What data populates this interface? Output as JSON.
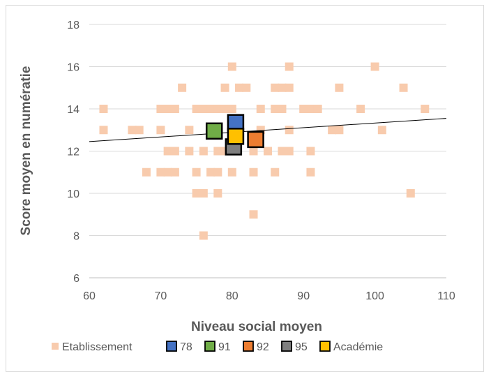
{
  "chart_data": {
    "type": "scatter",
    "xlabel": "Niveau social moyen",
    "ylabel": "Score moyen en numératie",
    "xlim": [
      60,
      110
    ],
    "ylim": [
      6,
      18
    ],
    "xticks": [
      60,
      70,
      80,
      90,
      100,
      110
    ],
    "yticks": [
      6,
      8,
      10,
      12,
      14,
      16,
      18
    ],
    "grid": "horizontal",
    "legend_position": "bottom",
    "trendline": {
      "from": [
        60,
        12.45
      ],
      "to": [
        110,
        13.55
      ]
    },
    "series": [
      {
        "name": "Etablissement",
        "color": "#f8cbad",
        "points": [
          [
            62,
            14
          ],
          [
            62,
            13
          ],
          [
            66,
            13
          ],
          [
            67,
            13
          ],
          [
            68,
            11
          ],
          [
            70,
            14
          ],
          [
            70,
            13
          ],
          [
            70,
            11
          ],
          [
            71,
            14
          ],
          [
            71,
            12
          ],
          [
            71,
            11
          ],
          [
            72,
            14
          ],
          [
            72,
            12
          ],
          [
            72,
            11
          ],
          [
            73,
            15
          ],
          [
            74,
            13
          ],
          [
            74,
            12
          ],
          [
            75,
            14
          ],
          [
            75,
            11
          ],
          [
            75,
            10
          ],
          [
            76,
            14
          ],
          [
            76,
            12
          ],
          [
            76,
            10
          ],
          [
            76,
            8
          ],
          [
            77,
            14
          ],
          [
            77,
            11
          ],
          [
            78,
            14
          ],
          [
            78,
            12
          ],
          [
            78,
            11
          ],
          [
            78,
            10
          ],
          [
            79,
            15
          ],
          [
            79,
            14
          ],
          [
            79,
            12
          ],
          [
            80,
            16
          ],
          [
            80,
            14
          ],
          [
            80,
            11
          ],
          [
            81,
            15
          ],
          [
            82,
            15
          ],
          [
            83,
            12
          ],
          [
            83,
            11
          ],
          [
            83,
            9
          ],
          [
            84,
            14
          ],
          [
            84,
            13
          ],
          [
            85,
            12
          ],
          [
            86,
            15
          ],
          [
            86,
            14
          ],
          [
            86,
            11
          ],
          [
            87,
            15
          ],
          [
            87,
            14
          ],
          [
            87,
            12
          ],
          [
            88,
            16
          ],
          [
            88,
            15
          ],
          [
            88,
            13
          ],
          [
            88,
            12
          ],
          [
            90,
            14
          ],
          [
            91,
            14
          ],
          [
            91,
            12
          ],
          [
            91,
            11
          ],
          [
            92,
            14
          ],
          [
            94,
            13
          ],
          [
            95,
            15
          ],
          [
            95,
            13
          ],
          [
            98,
            14
          ],
          [
            100,
            16
          ],
          [
            101,
            13
          ],
          [
            104,
            15
          ],
          [
            105,
            10
          ],
          [
            107,
            14
          ]
        ]
      },
      {
        "name": "78",
        "color": "#4472c4",
        "points": [
          [
            80.5,
            13.35
          ]
        ]
      },
      {
        "name": "91",
        "color": "#70ad47",
        "points": [
          [
            77.5,
            12.95
          ]
        ]
      },
      {
        "name": "92",
        "color": "#ed7d31",
        "points": [
          [
            83.3,
            12.55
          ]
        ]
      },
      {
        "name": "95",
        "color": "#7f7f7f",
        "points": [
          [
            80.2,
            12.2
          ]
        ]
      },
      {
        "name": "Académie",
        "color": "#ffc000",
        "points": [
          [
            80.5,
            12.7
          ]
        ]
      }
    ]
  }
}
